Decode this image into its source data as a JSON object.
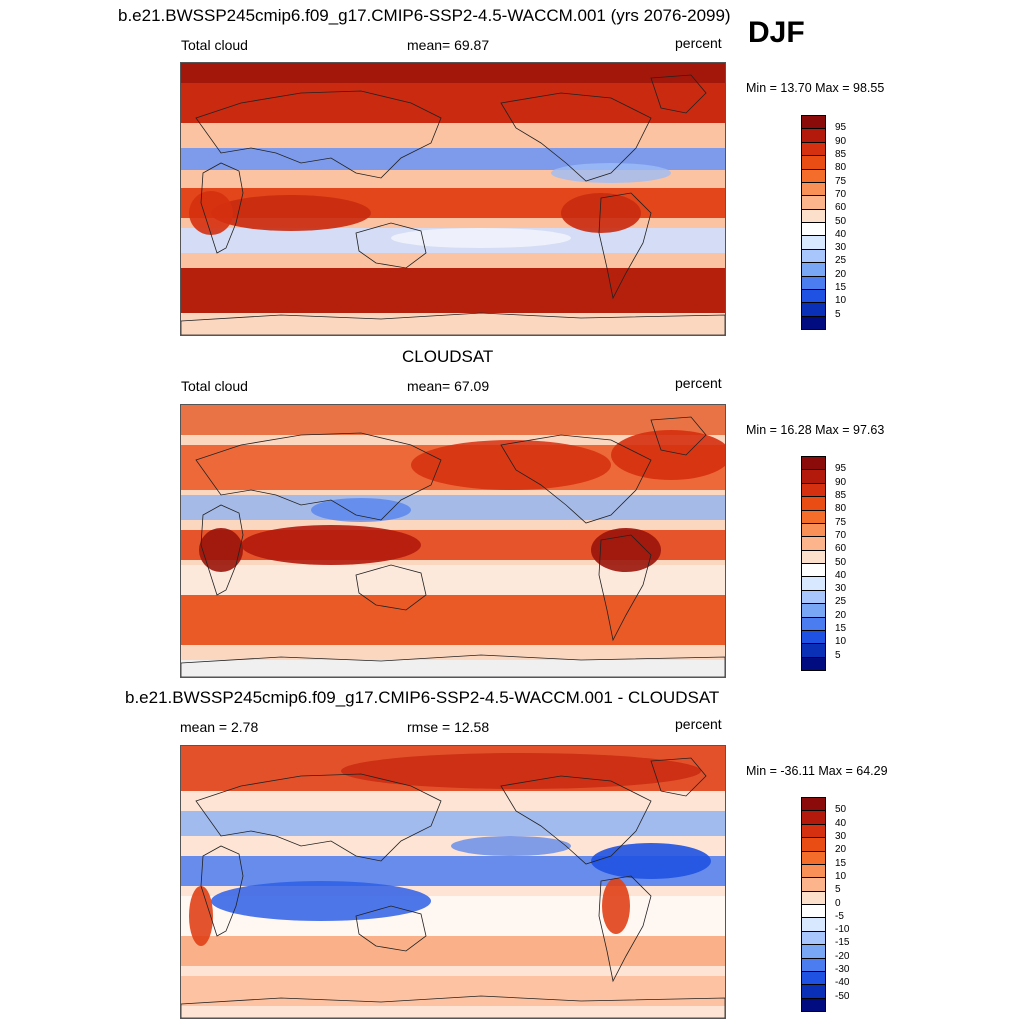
{
  "season": "DJF",
  "panels": [
    {
      "title": "b.e21.BWSSP245cmip6.f09_g17.CMIP6-SSP2-4.5-WACCM.001 (yrs 2076-2099)",
      "left_label": "Total cloud",
      "center_label": "mean=  69.87",
      "right_label": "percent",
      "minmax": "Min =  13.70 Max =  98.55",
      "colorbar": {
        "labels": [
          "95",
          "90",
          "85",
          "80",
          "75",
          "70",
          "60",
          "50",
          "40",
          "30",
          "25",
          "20",
          "15",
          "10",
          "5"
        ],
        "colors": [
          "#8b0a0a",
          "#b31a0c",
          "#d5300f",
          "#ea4d14",
          "#f46d2a",
          "#f99057",
          "#fcb48c",
          "#fde0cc",
          "#ffffff",
          "#d8e8ff",
          "#a8c6fb",
          "#7aa6f6",
          "#4c7df0",
          "#1f52e2",
          "#0a30b8",
          "#000c80"
        ]
      },
      "map": {
        "field": "model"
      }
    },
    {
      "title": "CLOUDSAT",
      "left_label": "Total cloud",
      "center_label": "mean=  67.09",
      "right_label": "percent",
      "minmax": "Min =  16.28 Max =  97.63",
      "colorbar": {
        "labels": [
          "95",
          "90",
          "85",
          "80",
          "75",
          "70",
          "60",
          "50",
          "40",
          "30",
          "25",
          "20",
          "15",
          "10",
          "5"
        ],
        "colors": [
          "#8b0a0a",
          "#b31a0c",
          "#d5300f",
          "#ea4d14",
          "#f46d2a",
          "#f99057",
          "#fcb48c",
          "#fde0cc",
          "#ffffff",
          "#d8e8ff",
          "#a8c6fb",
          "#7aa6f6",
          "#4c7df0",
          "#1f52e2",
          "#0a30b8",
          "#000c80"
        ]
      },
      "map": {
        "field": "obs"
      }
    },
    {
      "title": "b.e21.BWSSP245cmip6.f09_g17.CMIP6-SSP2-4.5-WACCM.001 - CLOUDSAT",
      "left_label": "mean =   2.78",
      "center_label": "rmse =  12.58",
      "right_label": "percent",
      "minmax": "Min = -36.11 Max =  64.29",
      "colorbar": {
        "labels": [
          "50",
          "40",
          "30",
          "20",
          "15",
          "10",
          "5",
          "0",
          "-5",
          "-10",
          "-15",
          "-20",
          "-30",
          "-40",
          "-50"
        ],
        "colors": [
          "#8b0a0a",
          "#b31a0c",
          "#d5300f",
          "#ea4d14",
          "#f46d2a",
          "#f99057",
          "#fcb48c",
          "#fde0cc",
          "#ffffff",
          "#d8e8ff",
          "#a8c6fb",
          "#7aa6f6",
          "#4c7df0",
          "#1f52e2",
          "#0a30b8",
          "#000c80"
        ]
      },
      "map": {
        "field": "diff"
      }
    }
  ]
}
